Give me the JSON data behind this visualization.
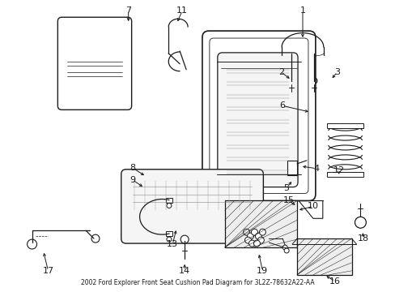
{
  "title": "2002 Ford Explorer Front Seat Cushion Pad Diagram for 3L2Z-78632A22-AA",
  "background_color": "#ffffff",
  "line_color": "#1a1a1a",
  "figure_width": 4.89,
  "figure_height": 3.6,
  "dpi": 100,
  "label_font_size": 8.0,
  "title_font_size": 5.5
}
